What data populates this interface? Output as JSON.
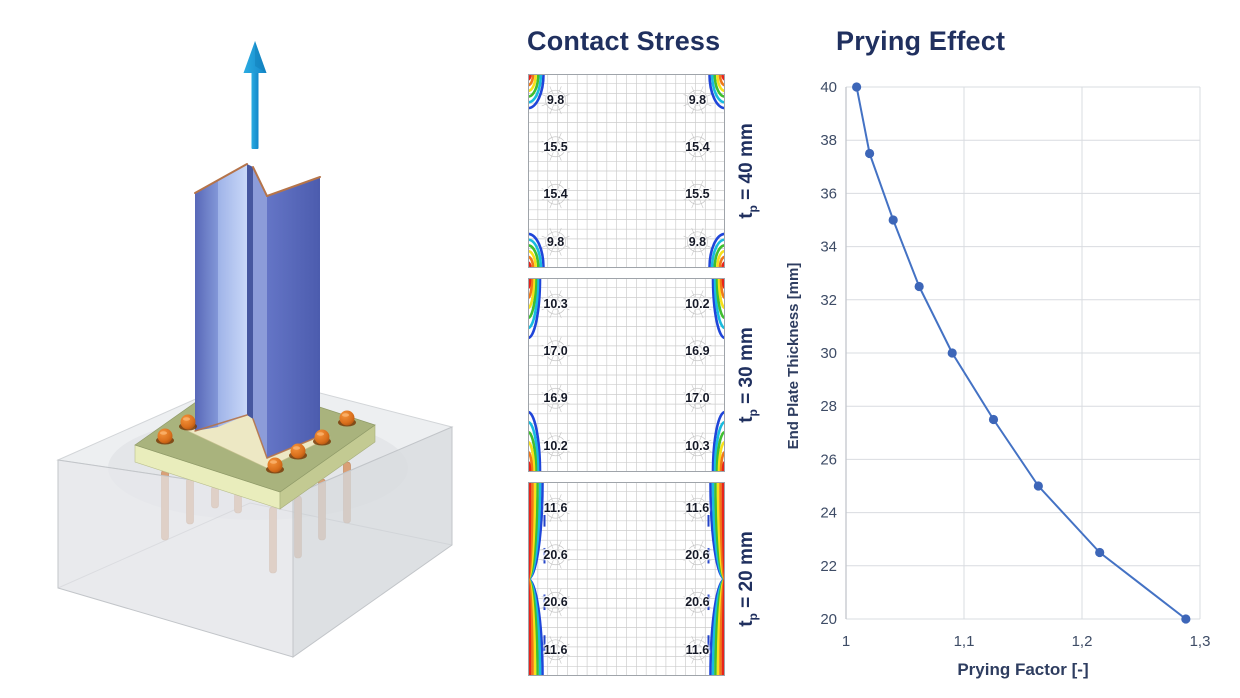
{
  "page": {
    "background": "#FFFFFF"
  },
  "illustration": {
    "description_icons": [
      "up-arrow-icon",
      "steel-column",
      "base-plate",
      "anchor-bolts",
      "concrete-block"
    ],
    "colors": {
      "arrow_blue": "#1D9CD8",
      "steel_web_light": "#BCCEF4",
      "steel_flange": "#5D6EBE",
      "copper_edge": "#B5744A",
      "plate_olive": "#A9B37D",
      "plate_side_pale": "#E9EDBC",
      "plate_side_mid": "#C3CA92",
      "bolt_orange": "#D96F1C",
      "anchor_copper": "#D9A077",
      "concrete_top": "#EDEFF1",
      "concrete_left": "#E0E2E6",
      "concrete_right": "#D4D7DB"
    }
  },
  "contact_stress": {
    "title": "Contact Stress",
    "value_columns": [
      0.14,
      0.86
    ],
    "value_rows": [
      0.135,
      0.375,
      0.62,
      0.865
    ],
    "stress_scale": [
      "#E8241B",
      "#F07818",
      "#F7E01A",
      "#3FBF2F",
      "#19BBDE",
      "#1F45D9"
    ],
    "plots": [
      {
        "label": {
          "t": "t",
          "sub": "p",
          "rest": " = 40 mm"
        },
        "edge_style": "corner",
        "values": [
          [
            "9.8",
            "9.8"
          ],
          [
            "15.5",
            "15.4"
          ],
          [
            "15.4",
            "15.5"
          ],
          [
            "9.8",
            "9.8"
          ]
        ]
      },
      {
        "label": {
          "t": "t",
          "sub": "p",
          "rest": " = 30 mm"
        },
        "edge_style": "partial",
        "values": [
          [
            "10.3",
            "10.2"
          ],
          [
            "17.0",
            "16.9"
          ],
          [
            "16.9",
            "17.0"
          ],
          [
            "10.2",
            "10.3"
          ]
        ]
      },
      {
        "label": {
          "t": "t",
          "sub": "p",
          "rest": " = 20 mm"
        },
        "edge_style": "full",
        "values": [
          [
            "11.6",
            "11.6"
          ],
          [
            "20.6",
            "20.6"
          ],
          [
            "20.6",
            "20.6"
          ],
          [
            "11.6",
            "11.6"
          ]
        ]
      }
    ]
  },
  "chart_data": {
    "type": "line",
    "title": "Prying Effect",
    "xlabel": "Prying Factor [-]",
    "ylabel": "End Plate Thickness [mm]",
    "series": [
      {
        "name": "prying-curve",
        "x": [
          1.009,
          1.02,
          1.04,
          1.062,
          1.09,
          1.125,
          1.163,
          1.215,
          1.288
        ],
        "y": [
          40,
          37.5,
          35,
          32.5,
          30,
          27.5,
          25,
          22.5,
          20
        ]
      }
    ],
    "xlim": [
      1,
      1.3
    ],
    "ylim": [
      20,
      40
    ],
    "x_ticks": [
      {
        "label": "1",
        "value": 1.0
      },
      {
        "label": "1,1",
        "value": 1.1
      },
      {
        "label": "1,2",
        "value": 1.2
      },
      {
        "label": "1,3",
        "value": 1.3
      }
    ],
    "y_tick_start": 20,
    "y_tick_end": 40,
    "y_tick_step": 2,
    "grid": true,
    "legend": "none",
    "line_color": "#4472C4",
    "marker_color": "#3D66B8",
    "gridline_color": "#D9DCE0",
    "axis_color": "#C3C7CD",
    "tick_color": "#3E4C66"
  },
  "theme": {
    "heading_navy": "#20305F"
  }
}
